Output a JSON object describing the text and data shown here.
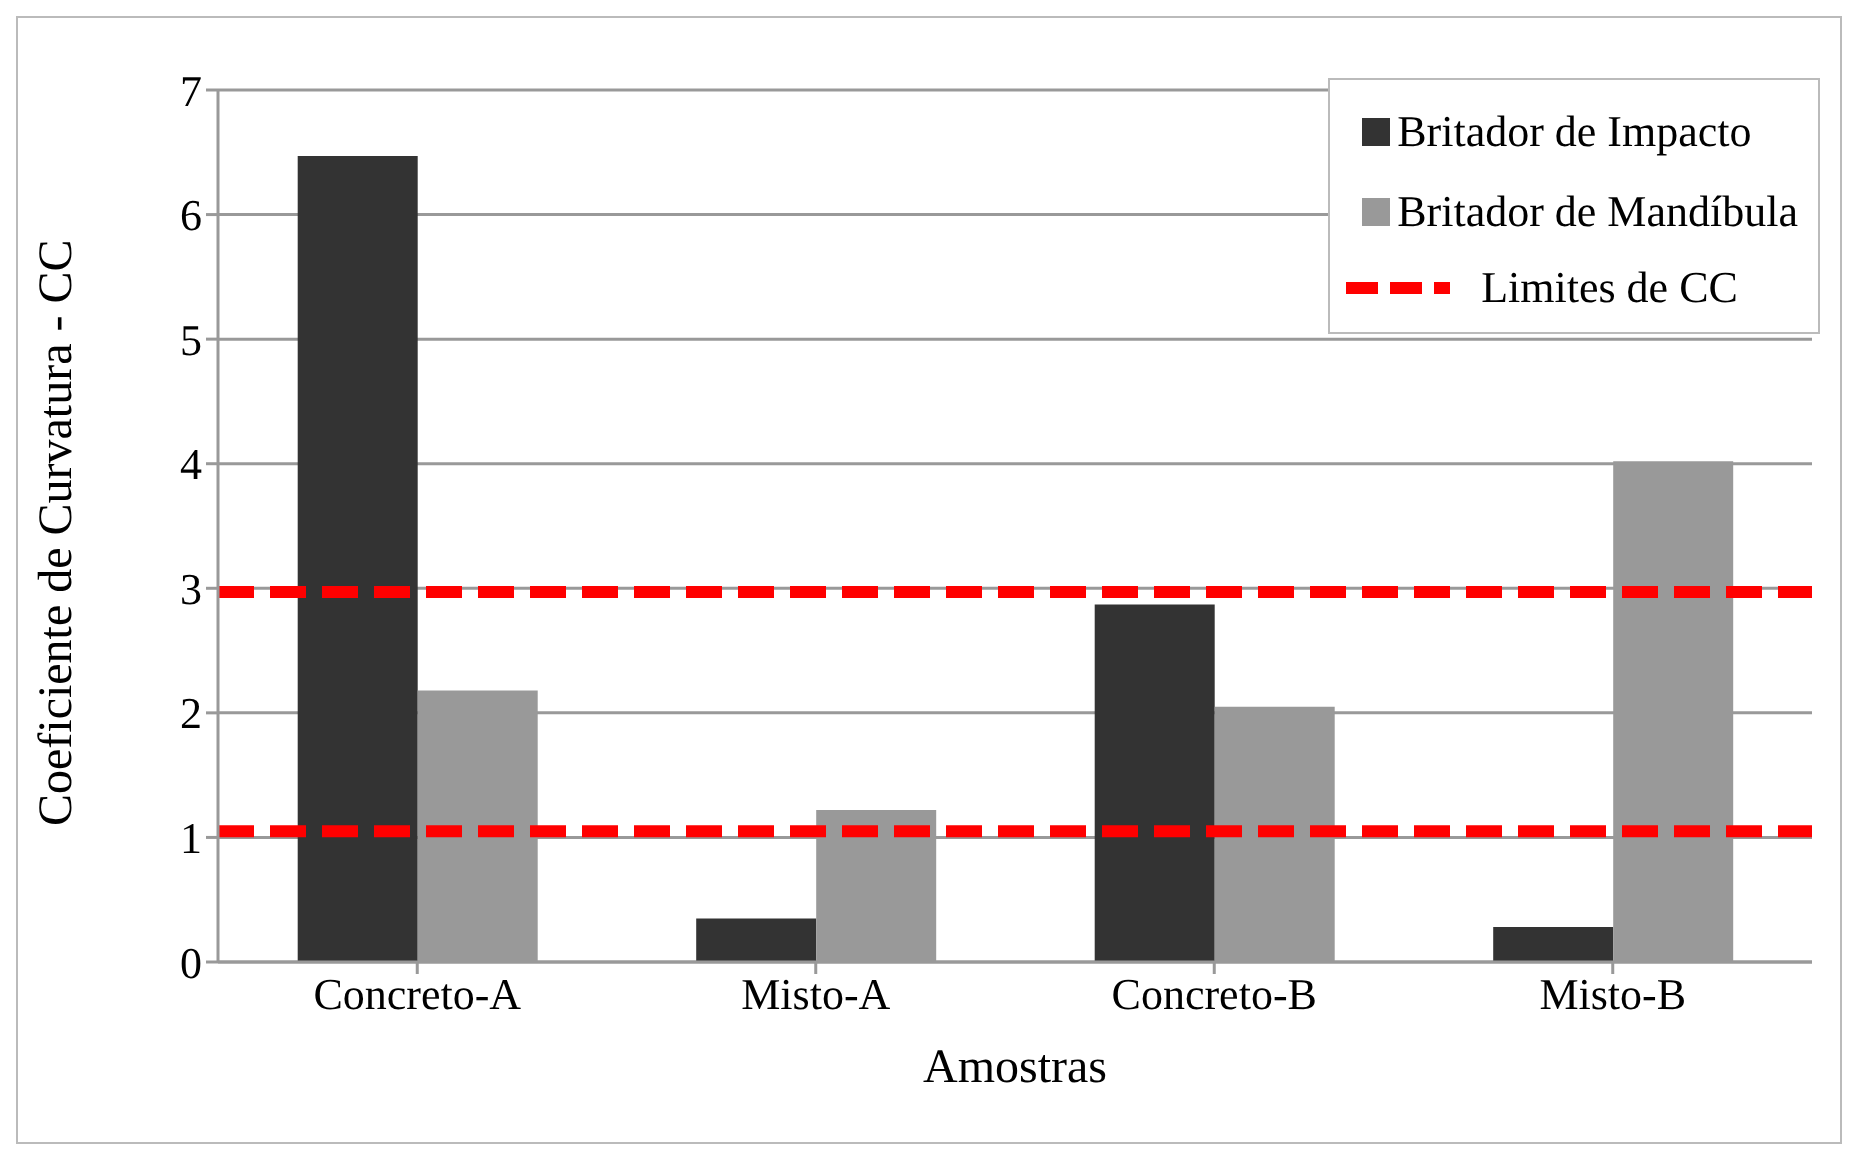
{
  "chart_data": {
    "type": "bar",
    "xlabel": "Amostras",
    "ylabel": "Coeficiente de Curvatura - CC",
    "categories": [
      "Concreto-A",
      "Misto-A",
      "Concreto-B",
      "Misto-B"
    ],
    "series": [
      {
        "name": "Britador de Impacto",
        "color": "#333333",
        "values": [
          6.47,
          0.35,
          2.87,
          0.28
        ]
      },
      {
        "name": "Britador de Mandíbula",
        "color": "#999999",
        "values": [
          2.18,
          1.22,
          2.05,
          4.02
        ]
      }
    ],
    "ylim": [
      0,
      7
    ],
    "yticks": [
      0,
      1,
      2,
      3,
      4,
      5,
      6,
      7
    ],
    "grid": "y",
    "legend": "top right",
    "ref_lines": [
      {
        "axis": "y",
        "value": 2.97,
        "label": "Limites de CC",
        "color": "#ff0000",
        "line_style": "dashed"
      },
      {
        "axis": "y",
        "value": 1.05,
        "color": "#ff0000",
        "line_style": "dashed"
      }
    ]
  }
}
